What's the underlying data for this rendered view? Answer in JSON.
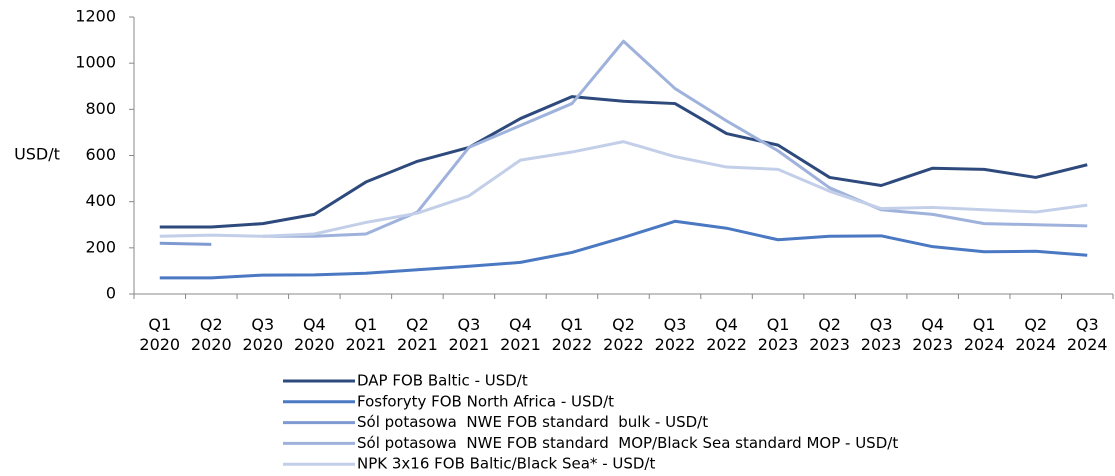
{
  "chart_data": {
    "type": "line",
    "ylabel": "USD/t",
    "categories": [
      "Q1 2020",
      "Q2 2020",
      "Q3 2020",
      "Q4 2020",
      "Q1 2021",
      "Q2 2021",
      "Q3 2021",
      "Q4 2021",
      "Q1 2022",
      "Q2 2022",
      "Q3 2022",
      "Q4 2022",
      "Q1 2023",
      "Q2 2023",
      "Q3 2023",
      "Q4 2023",
      "Q1 2024",
      "Q2 2024",
      "Q3 2024"
    ],
    "series": [
      {
        "name": "DAP FOB Baltic - USD/t",
        "color": "#2e4a7d",
        "values": [
          290,
          290,
          305,
          345,
          485,
          575,
          635,
          760,
          855,
          835,
          825,
          695,
          645,
          505,
          470,
          545,
          540,
          505,
          560
        ]
      },
      {
        "name": "Fosforyty FOB North Africa - USD/t",
        "color": "#4a78c2",
        "values": [
          70,
          70,
          82,
          83,
          90,
          105,
          120,
          137,
          180,
          245,
          315,
          285,
          235,
          250,
          252,
          205,
          183,
          185,
          168
        ]
      },
      {
        "name": "Sól potasowa  NWE FOB standard  bulk - USD/t",
        "color": "#7f9ad0",
        "values": [
          220,
          215,
          null,
          null,
          null,
          null,
          null,
          null,
          null,
          null,
          null,
          null,
          null,
          null,
          null,
          null,
          null,
          null,
          null
        ]
      },
      {
        "name": "Sól potasowa  NWE FOB standard  MOP/Black Sea standard MOP - USD/t",
        "color": "#9fb2dc",
        "values": [
          null,
          null,
          250,
          250,
          260,
          355,
          635,
          730,
          825,
          1095,
          890,
          750,
          620,
          460,
          365,
          345,
          305,
          300,
          295
        ]
      },
      {
        "name": "NPK 3x16 FOB Baltic/Black Sea* - USD/t",
        "color": "#c3cfe9",
        "values": [
          250,
          255,
          250,
          260,
          310,
          350,
          425,
          580,
          615,
          660,
          595,
          550,
          540,
          445,
          370,
          375,
          365,
          355,
          385
        ]
      }
    ],
    "ylim": [
      0,
      1200
    ],
    "yticks": [
      0,
      200,
      400,
      600,
      800,
      1000,
      1200
    ],
    "grid": false,
    "legend": "bottom"
  }
}
